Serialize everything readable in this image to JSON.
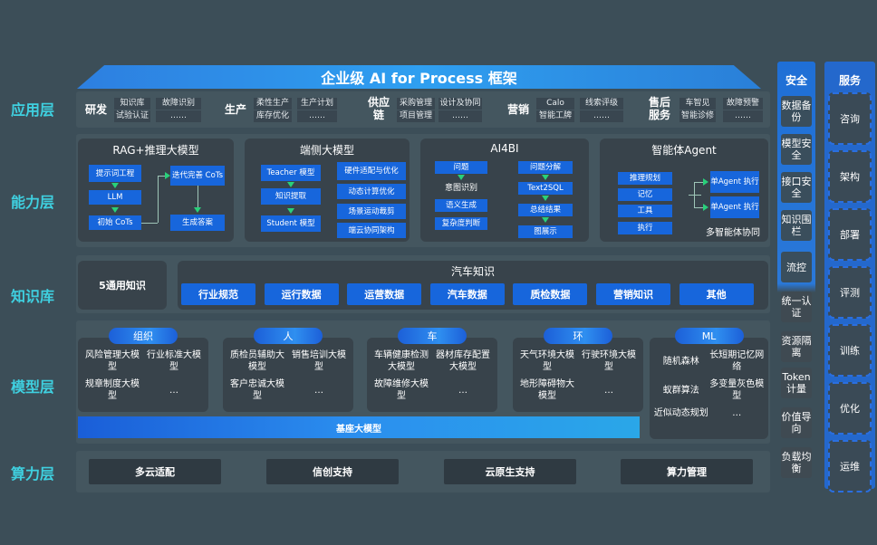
{
  "title": "企业级 AI for Process 框架",
  "layers": [
    "应用层",
    "能力层",
    "知识库",
    "模型层",
    "算力层"
  ],
  "app": [
    {
      "name": "研发",
      "items": [
        "知识库",
        "故障识别",
        "试验认证",
        "……"
      ]
    },
    {
      "name": "生产",
      "items": [
        "柔性生产",
        "生产计划",
        "库存优化",
        "……"
      ]
    },
    {
      "name": "供应链",
      "items": [
        "采购管理",
        "设计及协同",
        "项目管理",
        "……"
      ]
    },
    {
      "name": "营销",
      "items": [
        "Calo",
        "线索评级",
        "智能工牌",
        "……"
      ]
    },
    {
      "name": "售后服务",
      "items": [
        "车智见",
        "故障预警",
        "智能诊修",
        "……"
      ]
    }
  ],
  "capability": {
    "rag": {
      "title": "RAG+推理大模型",
      "boxes": [
        "提示词工程",
        "LLM",
        "初始 CoTs",
        "迭代完善 CoTs",
        "生成答案"
      ]
    },
    "edge": {
      "title": "端侧大模型",
      "left": [
        "Teacher 模型",
        "知识提取",
        "Student 模型"
      ],
      "right": [
        "硬件适配与优化",
        "动态计算优化",
        "场景运动裁剪",
        "端云协同架构"
      ]
    },
    "ai4bi": {
      "title": "AI4BI",
      "left": [
        "问题",
        "意图识别",
        "语义生成",
        "复杂度判断"
      ],
      "right": [
        "问题分解",
        "Text2SQL",
        "总结结果",
        "图展示"
      ]
    },
    "agent": {
      "title": "智能体Agent",
      "left": [
        "推理规划",
        "记忆",
        "工具",
        "执行"
      ],
      "right": [
        "单Agent 执行",
        "单Agent 执行"
      ],
      "caption": "多智能体协同"
    }
  },
  "knowledge": {
    "general": "5通用知识",
    "auto_title": "汽车知识",
    "auto": [
      "行业规范",
      "运行数据",
      "运营数据",
      "汽车数据",
      "质检数据",
      "营销知识",
      "其他"
    ]
  },
  "models": [
    {
      "name": "组织",
      "items": [
        "风险管理大模型",
        "行业标准大模型",
        "规章制度大模型",
        "…"
      ]
    },
    {
      "name": "人",
      "items": [
        "质检员辅助大模型",
        "销售培训大模型",
        "客户忠诚大模型",
        "…"
      ]
    },
    {
      "name": "车",
      "items": [
        "车辆健康检测大模型",
        "器材库存配置大模型",
        "故障维修大模型",
        "…"
      ]
    },
    {
      "name": "环",
      "items": [
        "天气环境大模型",
        "行驶环境大模型",
        "地形障碍物大模型",
        "…"
      ]
    },
    {
      "name": "ML",
      "items": [
        "随机森林",
        "长短期记忆网络",
        "蚁群算法",
        "多变量灰色模型",
        "近似动态规划",
        "…"
      ]
    }
  ],
  "base_model": "基座大模型",
  "compute": [
    "多云适配",
    "信创支持",
    "云原生支持",
    "算力管理"
  ],
  "security": {
    "title": "安全",
    "items": [
      "数据备份",
      "模型安全",
      "接口安全",
      "知识围栏",
      "流控",
      "统一认证",
      "资源隔离",
      "Token计量",
      "价值导向",
      "负载均衡"
    ]
  },
  "service": {
    "title": "服务",
    "items": [
      "咨询",
      "架构",
      "部署",
      "评测",
      "训练",
      "优化",
      "运维"
    ]
  },
  "colors": {
    "accent": "#1766dc",
    "layer_label": "#3fd0e0",
    "background": "#3c4e58"
  }
}
